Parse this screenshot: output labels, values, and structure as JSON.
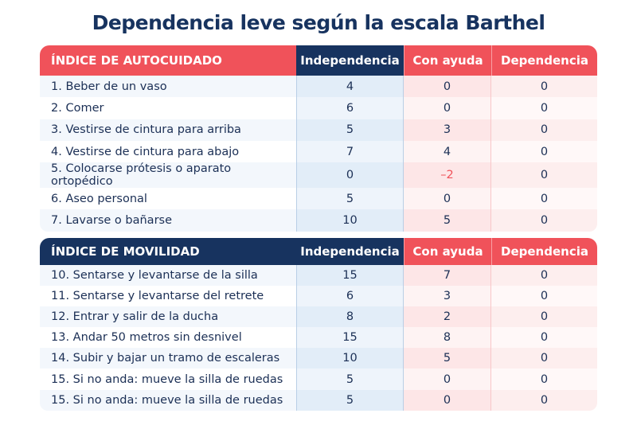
{
  "title": "Dependencia leve según la escala Barthel",
  "colors": {
    "navy": "#17335f",
    "red": "#f0525a"
  },
  "columns": [
    "Independencia",
    "Con ayuda",
    "Dependencia"
  ],
  "tables": [
    {
      "heading": "ÍNDICE DE AUTOCUIDADO",
      "rows": [
        {
          "label": "1. Beber de un vaso",
          "values": [
            "4",
            "0",
            "0"
          ]
        },
        {
          "label": "2. Comer",
          "values": [
            "6",
            "0",
            "0"
          ]
        },
        {
          "label": "3. Vestirse de cintura para arriba",
          "values": [
            "5",
            "3",
            "0"
          ]
        },
        {
          "label": "4. Vestirse de cintura para abajo",
          "values": [
            "7",
            "4",
            "0"
          ]
        },
        {
          "label": "5. Colocarse prótesis o aparato ortopédico",
          "values": [
            "0",
            "–2",
            "0"
          ]
        },
        {
          "label": "6. Aseo personal",
          "values": [
            "5",
            "0",
            "0"
          ]
        },
        {
          "label": "7. Lavarse o bañarse",
          "values": [
            "10",
            "5",
            "0"
          ]
        }
      ]
    },
    {
      "heading": "ÍNDICE DE MOVILIDAD",
      "rows": [
        {
          "label": "10. Sentarse y levantarse de la silla",
          "values": [
            "15",
            "7",
            "0"
          ]
        },
        {
          "label": "11. Sentarse y levantarse del retrete",
          "values": [
            "6",
            "3",
            "0"
          ]
        },
        {
          "label": "12. Entrar y salir de la ducha",
          "values": [
            "8",
            "2",
            "0"
          ]
        },
        {
          "label": "13. Andar 50 metros sin desnivel",
          "values": [
            "15",
            "8",
            "0"
          ]
        },
        {
          "label": "14. Subir y bajar un tramo de escaleras",
          "values": [
            "10",
            "5",
            "0"
          ]
        },
        {
          "label": "15. Si no anda: mueve la silla de ruedas",
          "values": [
            "5",
            "0",
            "0"
          ]
        },
        {
          "label": "15. Si no anda: mueve la silla de ruedas",
          "values": [
            "5",
            "0",
            "0"
          ]
        }
      ]
    }
  ]
}
